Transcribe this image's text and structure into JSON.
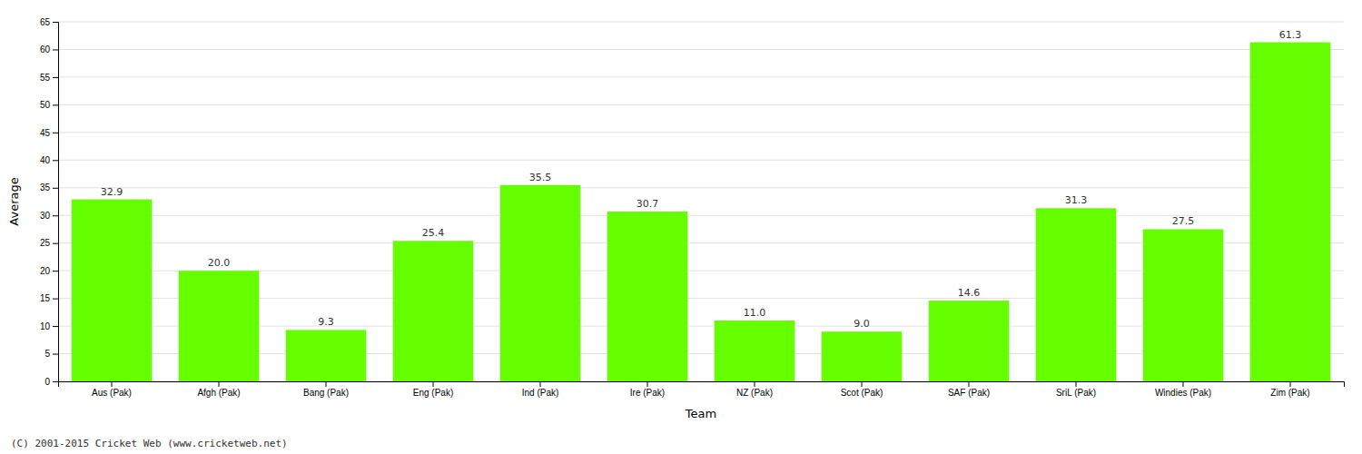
{
  "chart_data": {
    "type": "bar",
    "categories": [
      "Aus (Pak)",
      "Afgh (Pak)",
      "Bang (Pak)",
      "Eng (Pak)",
      "Ind (Pak)",
      "Ire (Pak)",
      "NZ (Pak)",
      "Scot (Pak)",
      "SAF (Pak)",
      "SriL (Pak)",
      "Windies (Pak)",
      "Zim (Pak)"
    ],
    "values": [
      32.9,
      20.0,
      9.3,
      25.4,
      35.5,
      30.7,
      11.0,
      9.0,
      14.6,
      31.3,
      27.5,
      61.3
    ],
    "value_labels": [
      "32.9",
      "20.0",
      "9.3",
      "25.4",
      "35.5",
      "30.7",
      "11.0",
      "9.0",
      "14.6",
      "31.3",
      "27.5",
      "61.3"
    ],
    "color": "#66FF00",
    "xlabel": "Team",
    "ylabel": "Average",
    "ylim": [
      0,
      65
    ],
    "yticks": [
      0,
      5,
      10,
      15,
      20,
      25,
      30,
      35,
      40,
      45,
      50,
      55,
      60,
      65
    ],
    "grid": true,
    "data_labels": true,
    "annotations": [
      "(C) 2001-2015 Cricket Web (www.cricketweb.net)"
    ]
  }
}
